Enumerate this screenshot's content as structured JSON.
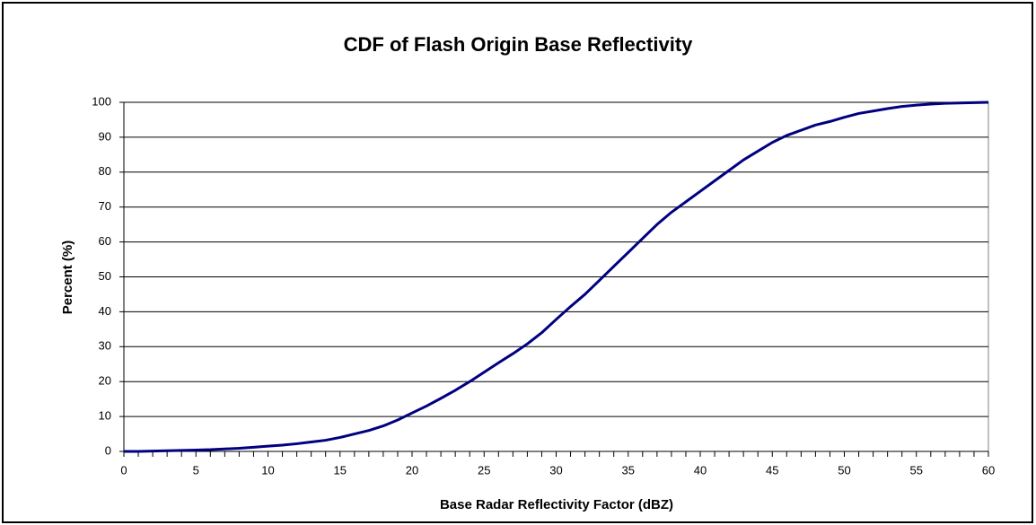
{
  "chart_data": {
    "type": "line",
    "title": "CDF of Flash Origin Base Reflectivity",
    "x_label": "Base Radar Reflectivity Factor (dBZ)",
    "y_label": "Percent (%)",
    "x": [
      0,
      1,
      2,
      3,
      4,
      5,
      6,
      7,
      8,
      9,
      10,
      11,
      12,
      13,
      14,
      15,
      16,
      17,
      18,
      19,
      20,
      21,
      22,
      23,
      24,
      25,
      26,
      27,
      28,
      29,
      30,
      31,
      32,
      33,
      34,
      35,
      36,
      37,
      38,
      39,
      40,
      41,
      42,
      43,
      44,
      45,
      46,
      47,
      48,
      49,
      50,
      51,
      52,
      53,
      54,
      55,
      56,
      57,
      58,
      59,
      60
    ],
    "series": [
      {
        "name": "CDF",
        "color": "#000080",
        "values": [
          0,
          0,
          0.1,
          0.2,
          0.3,
          0.4,
          0.5,
          0.7,
          0.9,
          1.2,
          1.5,
          1.8,
          2.2,
          2.7,
          3.2,
          4,
          5,
          6,
          7.3,
          9,
          11,
          13,
          15.2,
          17.5,
          20,
          22.7,
          25.4,
          28,
          30.8,
          34,
          37.8,
          41.5,
          45,
          49,
          53,
          57,
          61,
          65,
          68.5,
          71.5,
          74.5,
          77.5,
          80.5,
          83.5,
          86,
          88.5,
          90.5,
          92,
          93.5,
          94.5,
          95.7,
          96.8,
          97.5,
          98.2,
          98.8,
          99.2,
          99.5,
          99.7,
          99.8,
          99.9,
          100
        ]
      }
    ],
    "xlim": [
      0,
      60
    ],
    "xticks": [
      0,
      5,
      10,
      15,
      20,
      25,
      30,
      35,
      40,
      45,
      50,
      55,
      60
    ],
    "ylim": [
      0,
      100
    ],
    "yticks": [
      0,
      10,
      20,
      30,
      40,
      50,
      60,
      70,
      80,
      90,
      100
    ],
    "grid": true
  }
}
